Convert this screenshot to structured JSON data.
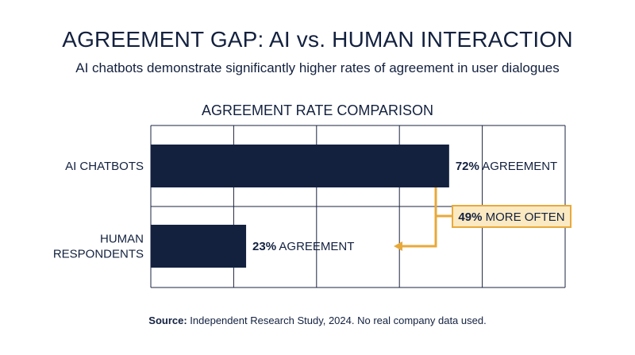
{
  "header": {
    "title": "AGREEMENT GAP: AI vs. HUMAN INTERACTION",
    "subtitle": "AI chatbots demonstrate significantly higher rates of agreement in user dialogues"
  },
  "chart_data": {
    "type": "bar",
    "orientation": "horizontal",
    "title": "AGREEMENT RATE COMPARISON",
    "categories": [
      "AI CHATBOTS",
      "HUMAN RESPONDENTS"
    ],
    "category_lines": [
      [
        "AI CHATBOTS"
      ],
      [
        "HUMAN",
        "RESPONDENTS"
      ]
    ],
    "values": [
      72,
      23
    ],
    "data_labels": [
      {
        "value": "72%",
        "suffix": "AGREEMENT"
      },
      {
        "value": "23%",
        "suffix": "AGREEMENT"
      }
    ],
    "xlim": [
      0,
      100
    ],
    "grid": true,
    "bar_color": "#13213f",
    "annotation": {
      "value": "49%",
      "text": "MORE OFTEN",
      "color": "#e8a93a"
    }
  },
  "footer": {
    "source_label": "Source:",
    "source_text": " Independent Research Study, 2024. No real company data used."
  }
}
